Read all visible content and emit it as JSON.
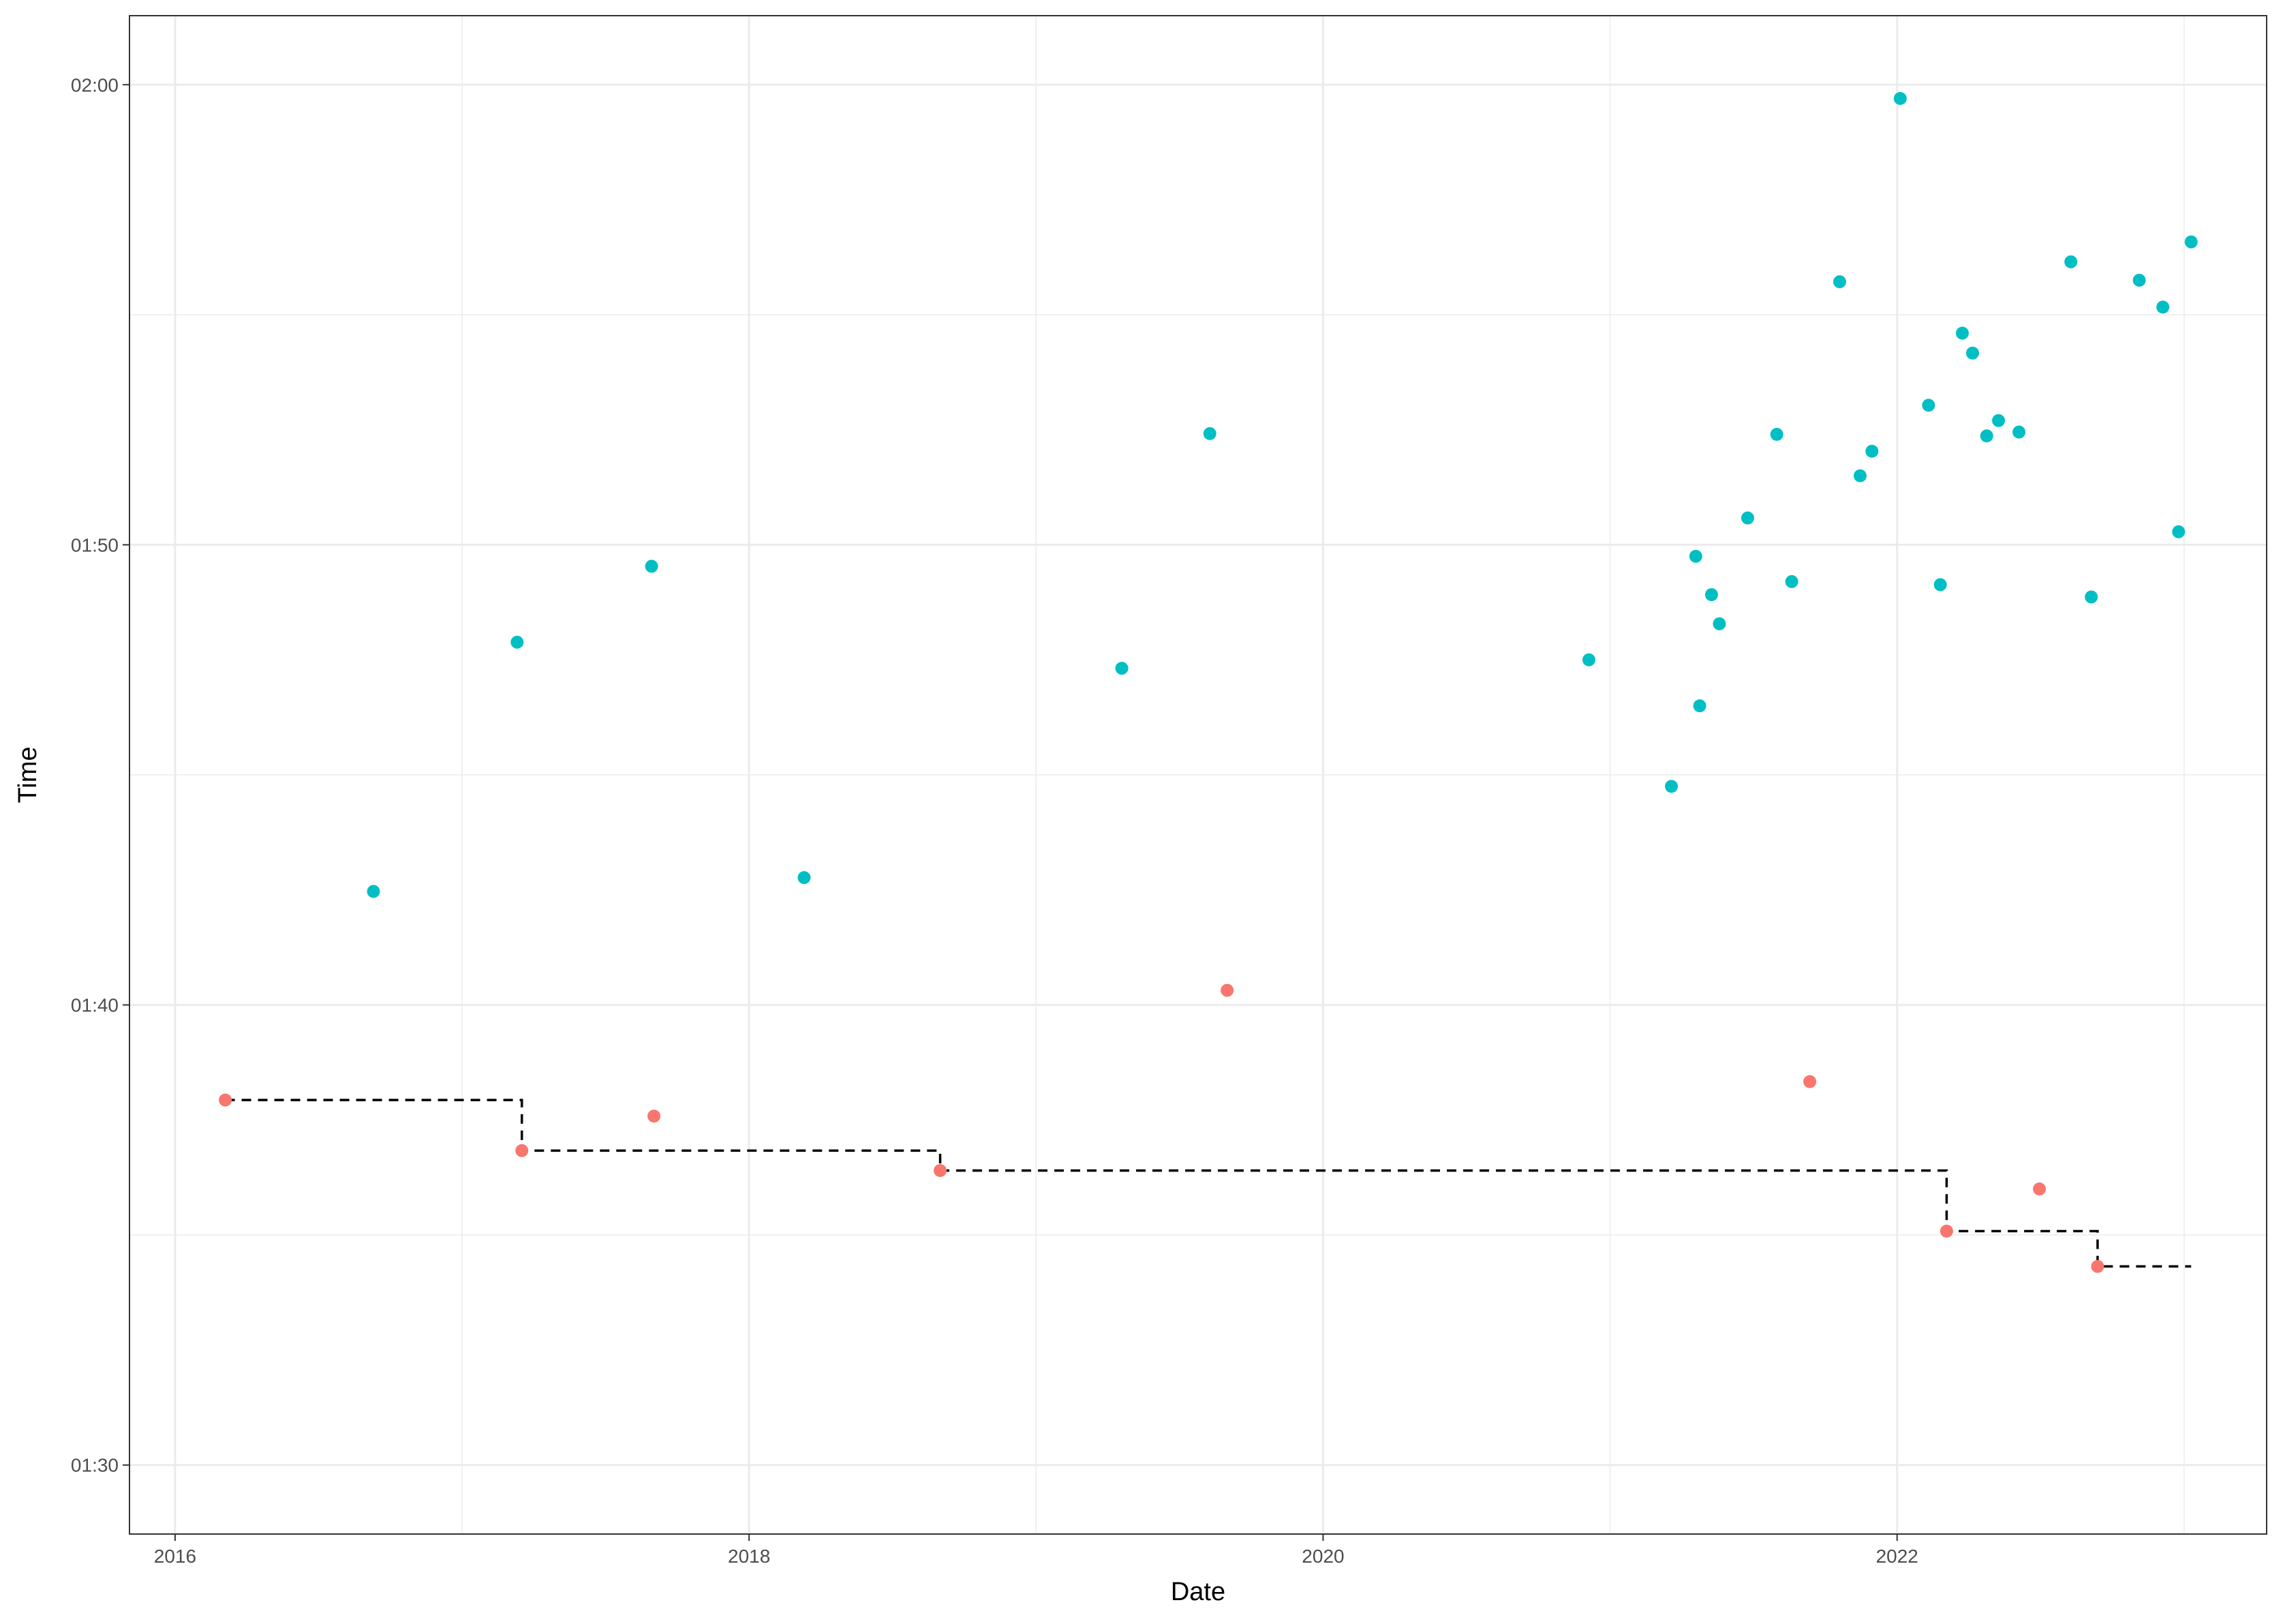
{
  "chart_data": {
    "type": "scatter",
    "title": "",
    "xlabel": "Date",
    "ylabel": "Time",
    "x_unit": "date",
    "y_unit": "minutes:seconds",
    "xlim": [
      "2015-11-04",
      "2023-04-16"
    ],
    "ylim": [
      "01:28:30",
      "02:01:30"
    ],
    "x_major_ticks": [
      "2016-01-01",
      "2018-01-01",
      "2020-01-01",
      "2022-01-01"
    ],
    "x_tick_labels": [
      "2016",
      "2018",
      "2020",
      "2022"
    ],
    "x_minor_ticks": [
      "2017-01-01",
      "2019-01-01",
      "2021-01-01",
      "2023-01-01"
    ],
    "y_major_ticks": [
      "01:30:00",
      "01:40:00",
      "01:50:00",
      "02:00:00"
    ],
    "y_tick_labels": [
      "01:30",
      "01:40",
      "01:50",
      "02:00"
    ],
    "y_minor_ticks": [
      "01:35:00",
      "01:45:00",
      "01:55:00"
    ],
    "grid": true,
    "legend": "none",
    "colors": {
      "record": "#F8766D",
      "other": "#00BFC4",
      "step_line": "#000000",
      "grid": "#ebebeb",
      "panel_border": "#333333"
    },
    "series": [
      {
        "points": [
          [
            "2016-03-05",
            "01:37:56"
          ],
          [
            "2017-03-18",
            "01:36:50"
          ],
          [
            "2017-09-02",
            "01:37:35"
          ],
          [
            "2018-09-01",
            "01:36:24"
          ],
          [
            "2019-09-01",
            "01:40:19"
          ],
          [
            "2021-09-12",
            "01:38:20"
          ],
          [
            "2022-03-05",
            "01:35:05"
          ],
          [
            "2022-07-01",
            "01:36:00"
          ],
          [
            "2022-09-13",
            "01:34:19"
          ]
        ]
      },
      {
        "points": [
          [
            "2016-09-10",
            "01:42:28"
          ],
          [
            "2017-03-12",
            "01:47:53"
          ],
          [
            "2017-08-30",
            "01:49:32"
          ],
          [
            "2018-03-12",
            "01:42:46"
          ],
          [
            "2019-04-20",
            "01:47:19"
          ],
          [
            "2019-08-10",
            "01:52:25"
          ],
          [
            "2020-12-05",
            "01:47:30"
          ],
          [
            "2021-03-20",
            "01:44:45"
          ],
          [
            "2021-04-20",
            "01:49:45"
          ],
          [
            "2021-04-25",
            "01:46:30"
          ],
          [
            "2021-05-10",
            "01:48:55"
          ],
          [
            "2021-05-20",
            "01:48:17"
          ],
          [
            "2021-06-25",
            "01:50:35"
          ],
          [
            "2021-08-01",
            "01:52:24"
          ],
          [
            "2021-08-20",
            "01:49:12"
          ],
          [
            "2021-10-20",
            "01:55:43"
          ],
          [
            "2021-11-15",
            "01:51:30"
          ],
          [
            "2021-11-30",
            "01:52:02"
          ],
          [
            "2022-01-05",
            "01:59:42"
          ],
          [
            "2022-02-10",
            "01:53:02"
          ],
          [
            "2022-02-25",
            "01:49:08"
          ],
          [
            "2022-03-25",
            "01:54:36"
          ],
          [
            "2022-04-07",
            "01:54:10"
          ],
          [
            "2022-04-25",
            "01:52:22"
          ],
          [
            "2022-05-10",
            "01:52:42"
          ],
          [
            "2022-06-05",
            "01:52:27"
          ],
          [
            "2022-08-10",
            "01:56:09"
          ],
          [
            "2022-09-05",
            "01:48:52"
          ],
          [
            "2022-11-05",
            "01:55:45"
          ],
          [
            "2022-12-05",
            "01:55:10"
          ],
          [
            "2022-12-25",
            "01:50:17"
          ],
          [
            "2023-01-10",
            "01:56:35"
          ]
        ]
      }
    ],
    "step_line": {
      "style": "dashed",
      "points": [
        [
          "2016-03-05",
          "01:37:56"
        ],
        [
          "2017-03-18",
          "01:36:50"
        ],
        [
          "2018-09-01",
          "01:36:24"
        ],
        [
          "2022-03-05",
          "01:35:05"
        ],
        [
          "2022-09-13",
          "01:34:19"
        ],
        [
          "2023-01-10",
          "01:34:19"
        ]
      ]
    }
  }
}
